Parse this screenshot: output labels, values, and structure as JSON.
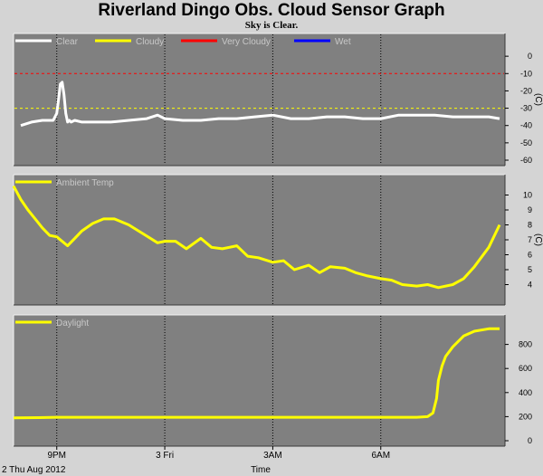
{
  "title": "Riverland Dingo Obs. Cloud Sensor Graph",
  "subtitle": "Sky is Clear.",
  "date_label": "2 Thu Aug 2012",
  "xlabel": "Time",
  "x_ticks": [
    "9PM",
    "3 Fri",
    "3AM",
    "6AM"
  ],
  "colors": {
    "background": "#d4d4d4",
    "plot_bg": "#808080",
    "clear": "#ffffff",
    "cloudy": "#ffff00",
    "very_cloudy": "#ff0000",
    "wet": "#0000ff",
    "ambient": "#ffff00",
    "daylight": "#ffff00"
  },
  "chart_data": [
    {
      "type": "line",
      "ylabel": "(C)",
      "ylim": [
        -60,
        10
      ],
      "y_ticks": [
        0,
        -10,
        -20,
        -30,
        -40,
        -50,
        -60
      ],
      "legend": [
        "Clear",
        "Cloudy",
        "Very Cloudy",
        "Wet"
      ],
      "legend_placement": "top-left",
      "thresholds": [
        {
          "name": "Very Cloudy",
          "value": -10
        },
        {
          "name": "Cloudy",
          "value": -30
        }
      ],
      "series": [
        {
          "name": "Clear",
          "x": [
            20.0,
            20.3,
            20.6,
            20.8,
            20.9,
            21.0,
            21.05,
            21.1,
            21.15,
            21.2,
            21.25,
            21.3,
            21.35,
            21.4,
            21.5,
            21.7,
            22.0,
            22.5,
            23.0,
            23.5,
            23.8,
            24.0,
            24.5,
            25.0,
            25.5,
            26.0,
            26.5,
            27.0,
            27.5,
            28.0,
            28.5,
            29.0,
            29.5,
            30.0,
            30.5,
            31.0,
            31.5,
            32.0,
            32.5,
            33.0,
            33.3
          ],
          "y": [
            -40,
            -38,
            -37,
            -37,
            -37,
            -33,
            -25,
            -16,
            -15,
            -22,
            -33,
            -38,
            -37,
            -38,
            -37,
            -38,
            -38,
            -38,
            -37,
            -36,
            -34,
            -36,
            -37,
            -37,
            -36,
            -36,
            -35,
            -34,
            -36,
            -36,
            -35,
            -35,
            -36,
            -36,
            -34,
            -34,
            -34,
            -35,
            -35,
            -35,
            -36
          ]
        }
      ]
    },
    {
      "type": "line",
      "ylabel": "(C)",
      "ylim": [
        3,
        11
      ],
      "y_ticks": [
        10,
        9,
        8,
        7,
        6,
        5,
        4
      ],
      "legend": [
        "Ambient Temp"
      ],
      "legend_placement": "top-left",
      "series": [
        {
          "name": "Ambient Temp",
          "x": [
            19.8,
            20.0,
            20.2,
            20.4,
            20.6,
            20.8,
            21.0,
            21.3,
            21.5,
            21.7,
            22.0,
            22.3,
            22.6,
            23.0,
            23.4,
            23.8,
            24.0,
            24.3,
            24.6,
            25.0,
            25.3,
            25.6,
            26.0,
            26.3,
            26.6,
            27.0,
            27.3,
            27.6,
            28.0,
            28.3,
            28.6,
            29.0,
            29.3,
            29.6,
            30.0,
            30.3,
            30.6,
            31.0,
            31.3,
            31.6,
            32.0,
            32.3,
            32.6,
            33.0,
            33.3
          ],
          "y": [
            10.6,
            9.7,
            9.0,
            8.4,
            7.8,
            7.3,
            7.2,
            6.6,
            7.1,
            7.6,
            8.1,
            8.4,
            8.4,
            8.0,
            7.4,
            6.8,
            6.9,
            6.9,
            6.4,
            7.1,
            6.5,
            6.4,
            6.6,
            5.9,
            5.8,
            5.5,
            5.6,
            5.0,
            5.3,
            4.8,
            5.2,
            5.1,
            4.8,
            4.6,
            4.4,
            4.3,
            4.0,
            3.9,
            4.0,
            3.8,
            4.0,
            4.4,
            5.2,
            6.5,
            8.0
          ]
        }
      ]
    },
    {
      "type": "line",
      "ylim": [
        0,
        1000
      ],
      "y_ticks": [
        800,
        600,
        400,
        200,
        0
      ],
      "legend": [
        "Daylight"
      ],
      "legend_placement": "top-left",
      "series": [
        {
          "name": "Daylight",
          "x": [
            19.8,
            20.5,
            21.0,
            22.0,
            23.0,
            24.0,
            25.0,
            26.0,
            27.0,
            28.0,
            29.0,
            30.0,
            30.5,
            31.0,
            31.3,
            31.45,
            31.55,
            31.6,
            31.7,
            31.8,
            32.0,
            32.3,
            32.6,
            33.0,
            33.3
          ],
          "y": [
            190,
            192,
            195,
            195,
            195,
            195,
            195,
            195,
            195,
            195,
            195,
            195,
            195,
            195,
            200,
            230,
            350,
            500,
            620,
            700,
            780,
            870,
            910,
            930,
            930
          ]
        }
      ]
    }
  ]
}
